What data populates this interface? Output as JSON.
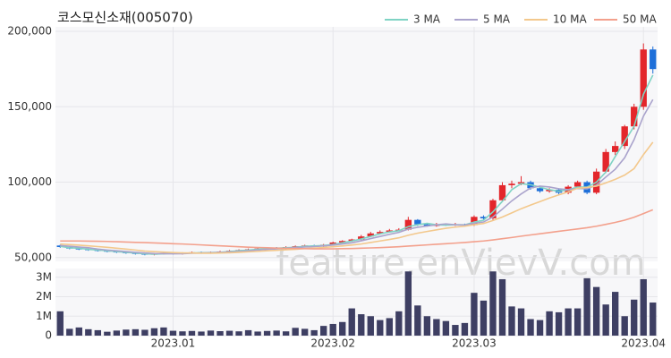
{
  "chart_data": [
    {
      "type": "candlestick",
      "title": "코스모신소재(005070)",
      "watermark": "feature.enVievV.com",
      "categories": [
        null,
        null,
        null,
        null,
        null,
        null,
        null,
        null,
        null,
        null,
        null,
        null,
        "2023.01",
        null,
        null,
        null,
        null,
        null,
        null,
        null,
        null,
        null,
        null,
        null,
        null,
        null,
        null,
        null,
        null,
        "2023.02",
        null,
        null,
        null,
        null,
        null,
        null,
        null,
        null,
        null,
        null,
        null,
        null,
        null,
        null,
        "2023.03",
        null,
        null,
        null,
        null,
        null,
        null,
        null,
        null,
        null,
        null,
        null,
        null,
        null,
        null,
        null,
        null,
        null,
        "2023.04",
        null
      ],
      "open": [
        58000,
        57000,
        56000,
        55500,
        55000,
        54500,
        54000,
        53500,
        53000,
        52500,
        52000,
        52500,
        53000,
        52500,
        53000,
        53500,
        53000,
        53500,
        54000,
        54500,
        55000,
        55500,
        56000,
        56500,
        56000,
        57000,
        57500,
        58000,
        57500,
        58500,
        60000,
        61000,
        62000,
        64000,
        66000,
        67000,
        68000,
        68500,
        75000,
        72000,
        71000,
        72000,
        71500,
        72000,
        71500,
        77000,
        76000,
        88000,
        98000,
        99000,
        100000,
        96000,
        94000,
        95000,
        93000,
        97000,
        100000,
        93000,
        107000,
        120000,
        124000,
        137000,
        150000,
        188000
      ],
      "high": [
        58500,
        57500,
        56500,
        56000,
        55500,
        55000,
        54500,
        54000,
        53500,
        53000,
        53000,
        53500,
        53500,
        53500,
        54000,
        54000,
        54000,
        54500,
        55000,
        55500,
        56000,
        56500,
        57000,
        57000,
        57500,
        58000,
        58500,
        58500,
        59000,
        60500,
        61500,
        62500,
        65000,
        67000,
        68000,
        69000,
        69500,
        77000,
        75500,
        73000,
        73000,
        72500,
        73000,
        72500,
        78000,
        78000,
        89000,
        100000,
        101000,
        104000,
        101000,
        97000,
        96000,
        96000,
        98000,
        101000,
        101000,
        109000,
        122000,
        127000,
        138000,
        152000,
        192000,
        190000
      ],
      "low": [
        56500,
        55500,
        55000,
        54500,
        54000,
        53500,
        53000,
        52500,
        52000,
        51500,
        51500,
        52000,
        52000,
        52000,
        52500,
        52500,
        52500,
        53000,
        53500,
        54000,
        54500,
        55000,
        55500,
        55500,
        55500,
        56500,
        57000,
        57000,
        57000,
        58000,
        59500,
        60500,
        61500,
        63500,
        65500,
        66500,
        67500,
        68000,
        71000,
        70500,
        70500,
        71000,
        71000,
        71000,
        71000,
        75000,
        75000,
        87000,
        96000,
        98000,
        95000,
        93000,
        93000,
        92000,
        92000,
        96000,
        92000,
        92000,
        106000,
        118000,
        122000,
        135000,
        148000,
        172000
      ],
      "close": [
        57000,
        56000,
        55500,
        55000,
        54500,
        54000,
        53500,
        53000,
        52500,
        52000,
        52500,
        53000,
        52500,
        53000,
        53500,
        53000,
        53500,
        54000,
        54500,
        55000,
        55500,
        56000,
        56500,
        56000,
        57000,
        57500,
        58000,
        57500,
        58500,
        60000,
        61000,
        62000,
        64000,
        66000,
        67000,
        68000,
        68500,
        75000,
        72000,
        71000,
        72000,
        71500,
        72000,
        71500,
        77000,
        76000,
        88000,
        98000,
        99000,
        100000,
        96000,
        94000,
        95000,
        93000,
        97000,
        100000,
        93000,
        107000,
        120000,
        124000,
        137000,
        150000,
        188000,
        175000
      ],
      "up_color": "#e3262b",
      "down_color": "#1e6fd9",
      "series": [
        {
          "name": "3 MA",
          "color": "#7fd3c4",
          "values": [
            57500,
            56500,
            56200,
            55500,
            55000,
            54500,
            54000,
            53500,
            53000,
            52500,
            52300,
            52500,
            52800,
            52800,
            53000,
            53200,
            53300,
            53500,
            54000,
            54500,
            55000,
            55500,
            56000,
            56200,
            56500,
            56800,
            57500,
            57700,
            58000,
            58700,
            59800,
            61000,
            62300,
            64000,
            65700,
            67000,
            67800,
            70500,
            71800,
            72700,
            71700,
            71500,
            71800,
            71700,
            73500,
            74800,
            80300,
            87300,
            95000,
            99000,
            98300,
            96700,
            95000,
            94000,
            95000,
            96700,
            96700,
            100000,
            106700,
            117000,
            127000,
            137000,
            158300,
            171000
          ]
        },
        {
          "name": "5 MA",
          "color": "#aaa3cc",
          "values": [
            58000,
            57500,
            57000,
            56500,
            55600,
            55000,
            54500,
            54000,
            53500,
            53000,
            52700,
            52600,
            52500,
            52600,
            52900,
            53000,
            53200,
            53400,
            53700,
            54000,
            54500,
            55000,
            55500,
            55800,
            56200,
            56600,
            57000,
            57300,
            57700,
            58300,
            59000,
            59800,
            61100,
            62600,
            64000,
            65400,
            66700,
            68900,
            70100,
            70900,
            71700,
            72300,
            71700,
            71600,
            72800,
            73600,
            76900,
            82100,
            87600,
            92200,
            96200,
            97400,
            96800,
            95600,
            95000,
            95800,
            95600,
            98000,
            103400,
            108600,
            116200,
            128200,
            143800,
            154800
          ]
        },
        {
          "name": "10 MA",
          "color": "#f3c88c",
          "values": [
            59000,
            58600,
            58200,
            57800,
            57300,
            56800,
            56200,
            55600,
            55000,
            54300,
            53900,
            53600,
            53300,
            53100,
            53000,
            52900,
            52900,
            53000,
            53200,
            53500,
            53800,
            54100,
            54500,
            54800,
            55200,
            55500,
            56000,
            56300,
            56700,
            57200,
            57700,
            58300,
            59000,
            60000,
            61000,
            62000,
            63100,
            64800,
            66200,
            67300,
            68400,
            69400,
            70200,
            70800,
            71800,
            72600,
            74600,
            76900,
            79600,
            82400,
            84800,
            87100,
            89500,
            91600,
            93600,
            96000,
            96500,
            97400,
            99500,
            101900,
            104700,
            109000,
            118300,
            126500
          ]
        },
        {
          "name": "50 MA",
          "color": "#f3a08c",
          "values": [
            61000,
            61000,
            61000,
            60900,
            60800,
            60700,
            60500,
            60300,
            60100,
            59900,
            59700,
            59500,
            59200,
            59000,
            58700,
            58400,
            58100,
            57800,
            57500,
            57200,
            56900,
            56700,
            56500,
            56300,
            56100,
            56000,
            55900,
            55800,
            55800,
            55800,
            55900,
            56000,
            56200,
            56400,
            56600,
            56900,
            57200,
            57600,
            58000,
            58400,
            58800,
            59200,
            59600,
            60000,
            60500,
            61000,
            61700,
            62500,
            63300,
            64200,
            65000,
            65800,
            66600,
            67400,
            68200,
            69000,
            69800,
            70800,
            72000,
            73300,
            74800,
            76700,
            79200,
            81700
          ]
        }
      ],
      "legend": "top-right",
      "grid": true,
      "ylim": [
        47500,
        203000
      ],
      "yticks": [
        {
          "value": 50000,
          "label": "50,000"
        },
        {
          "value": 100000,
          "label": "100,000"
        },
        {
          "value": 150000,
          "label": "150,000"
        },
        {
          "value": 200000,
          "label": "200,000"
        }
      ]
    },
    {
      "type": "bar",
      "color": "#3e3f63",
      "values": [
        1250000,
        350000,
        420000,
        330000,
        280000,
        200000,
        260000,
        310000,
        330000,
        300000,
        380000,
        420000,
        250000,
        220000,
        240000,
        210000,
        260000,
        230000,
        250000,
        220000,
        280000,
        210000,
        240000,
        260000,
        220000,
        400000,
        350000,
        280000,
        500000,
        600000,
        700000,
        1400000,
        1100000,
        1000000,
        800000,
        900000,
        1250000,
        3300000,
        1550000,
        1000000,
        850000,
        750000,
        550000,
        650000,
        2200000,
        1800000,
        3300000,
        2900000,
        1500000,
        1400000,
        850000,
        800000,
        1250000,
        1200000,
        1400000,
        1400000,
        2950000,
        2500000,
        1600000,
        2250000,
        1000000,
        1850000,
        2900000,
        1700000
      ],
      "ylim": [
        0,
        3450000
      ],
      "yticks": [
        0,
        {
          "value": 1000000,
          "label": "1M"
        },
        {
          "value": 2000000,
          "label": "2M"
        },
        {
          "value": 3000000,
          "label": "3M"
        }
      ]
    }
  ]
}
